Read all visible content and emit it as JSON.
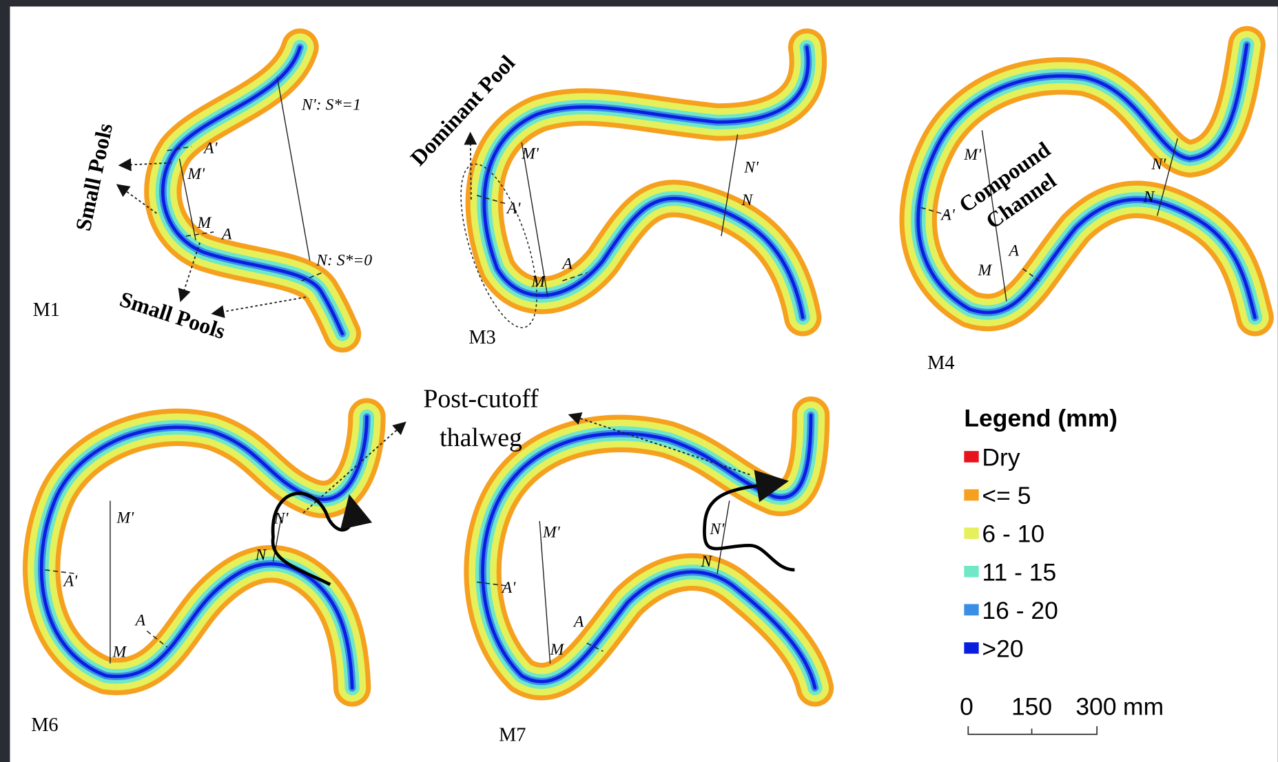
{
  "panels": [
    {
      "label": "M1",
      "points": [
        "A'",
        "M'",
        "M",
        "A",
        "N': S*=1",
        "N: S*=0"
      ]
    },
    {
      "label": "M3",
      "points": [
        "M'",
        "A'",
        "A",
        "M",
        "N'",
        "N"
      ]
    },
    {
      "label": "M4",
      "points": [
        "M'",
        "A'",
        "M",
        "A",
        "N'",
        "N"
      ]
    },
    {
      "label": "M6",
      "points": [
        "M'",
        "A'",
        "A",
        "M",
        "N'",
        "N"
      ]
    },
    {
      "label": "M7",
      "points": [
        "M'",
        "A'",
        "A",
        "M",
        "N'",
        "N"
      ]
    }
  ],
  "annotations": {
    "small_pools": [
      "Small Pools",
      "Small Pools"
    ],
    "dominant_pool": "Dominant Pool",
    "compound_channel": [
      "Compound",
      "Channel"
    ],
    "post_cutoff": [
      "Post-cutoff",
      "thalweg"
    ]
  },
  "legend": {
    "title": "Legend (mm)",
    "items": [
      {
        "label": "Dry",
        "color": "#e8141c"
      },
      {
        "label": "<= 5",
        "color": "#f5a01e"
      },
      {
        "label": "6 - 10",
        "color": "#e6f05a"
      },
      {
        "label": "11 - 15",
        "color": "#6fe8c8"
      },
      {
        "label": "16 - 20",
        "color": "#3a8ee6"
      },
      {
        "label": ">20",
        "color": "#0a1ee0"
      }
    ]
  },
  "scale_bar": {
    "ticks": [
      "0",
      "150",
      "300"
    ],
    "unit": "mm"
  }
}
